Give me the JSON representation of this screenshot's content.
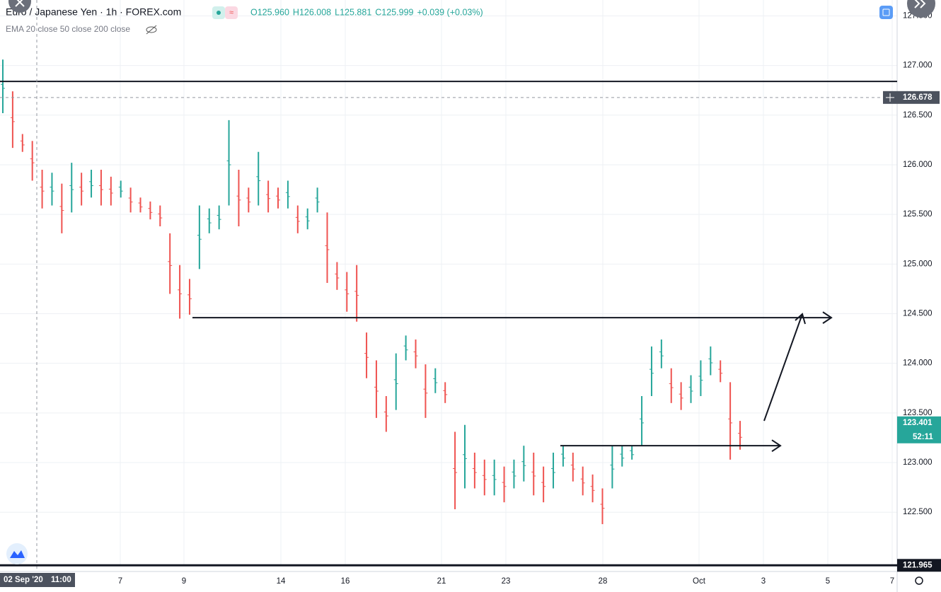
{
  "chart_data": {
    "type": "ohlc",
    "title": "Euro / Japanese Yen · 1h · FOREX.com",
    "ohlc_info": [
      "O125.960",
      "H126.008",
      "L125.881",
      "C125.999",
      "+0.039 (+0.03%)"
    ],
    "indicators": "EMA 20 close 50 close 200 close",
    "ylim": [
      121.96,
      127.66
    ],
    "yticks": [
      {
        "value": 122.5,
        "label": "122.500"
      },
      {
        "value": 123,
        "label": "123.000"
      },
      {
        "value": 123.5,
        "label": "123.500"
      },
      {
        "value": 124,
        "label": "124.000"
      },
      {
        "value": 124.5,
        "label": "124.500"
      },
      {
        "value": 125,
        "label": "125.000"
      },
      {
        "value": 125.5,
        "label": "125.500"
      },
      {
        "value": 126,
        "label": "126.000"
      },
      {
        "value": 126.5,
        "label": "126.500"
      },
      {
        "value": 127,
        "label": "127.000"
      },
      {
        "value": 127.5,
        "label": "127.500"
      }
    ],
    "xticks": [
      "7",
      "9",
      "14",
      "16",
      "21",
      "23",
      "28",
      "Oct",
      "3",
      "5",
      "7"
    ],
    "crosshair": {
      "date": "02 Sep '20",
      "time": "11:00",
      "price": 126.678,
      "price_label": "126.678"
    },
    "last_price": {
      "value": 123.401,
      "label": "123.401",
      "countdown": "52:11"
    },
    "bottom_line": {
      "value": 121.965,
      "label": "121.965"
    },
    "drawn_levels": [
      126.84,
      124.46,
      123.17
    ],
    "series": [
      {
        "name": "high",
        "values": [
          127.06,
          126.74,
          126.31,
          126.24,
          125.95,
          125.92,
          125.81,
          126.02,
          125.92,
          125.95,
          125.95,
          125.88,
          125.84,
          125.77,
          125.67,
          125.63,
          125.59,
          125.31,
          124.99,
          124.85,
          125.59,
          125.56,
          125.59,
          126.45,
          125.95,
          125.77,
          126.13,
          125.84,
          125.77,
          125.84,
          125.59,
          125.56,
          125.77,
          125.52,
          125.02,
          124.92,
          124.99,
          124.31,
          124.03,
          123.67,
          124.1,
          124.28,
          124.24,
          123.99,
          123.95,
          123.81,
          123.31,
          123.38,
          123.1,
          123.03,
          123.03,
          122.96,
          123.03,
          123.17,
          123.1,
          122.96,
          123.1,
          123.17,
          123.1,
          122.96,
          122.88,
          122.74,
          123.17,
          123.17,
          123.17,
          123.67,
          124.17,
          124.24,
          123.95,
          123.81,
          123.88,
          124.03,
          124.17,
          124.03,
          123.81,
          123.42
        ]
      },
      {
        "name": "low",
        "values": [
          126.52,
          126.17,
          126.13,
          125.84,
          125.56,
          125.59,
          125.31,
          125.52,
          125.59,
          125.67,
          125.59,
          125.59,
          125.67,
          125.52,
          125.52,
          125.45,
          125.38,
          124.7,
          124.45,
          124.49,
          124.95,
          125.31,
          125.35,
          125.59,
          125.38,
          125.52,
          125.59,
          125.52,
          125.56,
          125.56,
          125.31,
          125.35,
          125.52,
          124.81,
          124.74,
          124.52,
          124.42,
          123.85,
          123.45,
          123.31,
          123.53,
          124.03,
          123.95,
          123.45,
          123.7,
          123.6,
          122.53,
          122.74,
          122.74,
          122.67,
          122.67,
          122.6,
          122.74,
          122.81,
          122.67,
          122.6,
          122.74,
          122.96,
          122.81,
          122.67,
          122.6,
          122.38,
          122.74,
          122.96,
          123.03,
          123.17,
          123.67,
          123.95,
          123.6,
          123.53,
          123.6,
          123.67,
          123.88,
          123.81,
          123.03,
          123.13
        ]
      }
    ]
  }
}
